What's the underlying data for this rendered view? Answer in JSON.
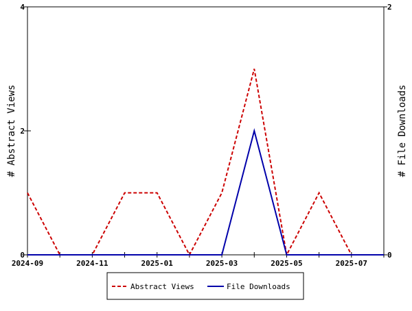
{
  "chart_data": {
    "type": "line",
    "title": "",
    "xlabel": "",
    "ylabel": "# Abstract Views",
    "y2label": "# File Downloads",
    "x": [
      "2024-09",
      "2024-10",
      "2024-11",
      "2024-12",
      "2025-01",
      "2025-02",
      "2025-03",
      "2025-04",
      "2025-05",
      "2025-06",
      "2025-07",
      "2025-08"
    ],
    "x_tick_labels": [
      "2024-09",
      "2024-11",
      "2025-01",
      "2025-03",
      "2025-05",
      "2025-07"
    ],
    "ylim": [
      0,
      4
    ],
    "y_ticks": [
      "0",
      "2",
      "4"
    ],
    "y2lim": [
      0,
      2
    ],
    "y2_ticks": [
      "0",
      "2"
    ],
    "grid": false,
    "legend_position": "bottom",
    "series": [
      {
        "name": "Abstract Views",
        "axis": "left",
        "color": "#cc0000",
        "style": "dashed",
        "values": [
          1,
          0,
          0,
          1,
          1,
          0,
          1,
          3,
          0,
          1,
          0,
          0
        ]
      },
      {
        "name": "File Downloads",
        "axis": "right",
        "color": "#0000aa",
        "style": "solid",
        "values": [
          0,
          0,
          0,
          0,
          0,
          0,
          0,
          1,
          0,
          0,
          0,
          0
        ]
      }
    ]
  }
}
